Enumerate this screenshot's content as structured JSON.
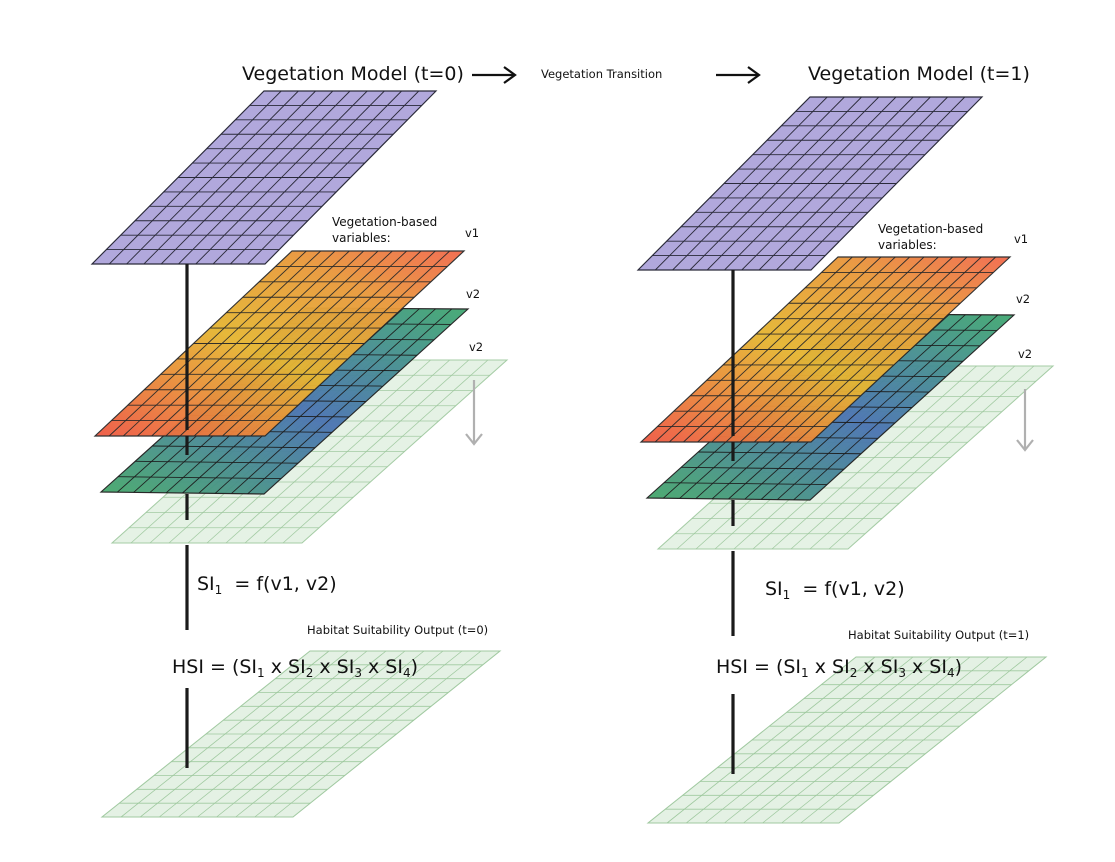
{
  "header": {
    "model_left": "Vegetation Model (t=0)",
    "transition": "Vegetation Transition",
    "model_right": "Vegetation Model (t=1)"
  },
  "panels": [
    {
      "id": "t0",
      "variables_label_line1": "Vegetation-based",
      "variables_label_line2": "variables:",
      "layer_labels": [
        "v1",
        "v2",
        "v2"
      ],
      "si_formula": {
        "si": "SI",
        "sub": "1",
        "rest": "= f(v1, v2)"
      },
      "output_label": "Habitat Suitability Output (t=0)",
      "hsi_formula": {
        "prefix": "HSI = (",
        "terms": [
          {
            "base": "SI",
            "sub": "1"
          },
          {
            "base": "SI",
            "sub": "2"
          },
          {
            "base": "SI",
            "sub": "3"
          },
          {
            "base": "SI",
            "sub": "4"
          }
        ],
        "separator": " x ",
        "suffix": ")"
      }
    },
    {
      "id": "t1",
      "variables_label_line1": "Vegetation-based",
      "variables_label_line2": "variables:",
      "layer_labels": [
        "v1",
        "v2",
        "v2"
      ],
      "si_formula": {
        "si": "SI",
        "sub": "1",
        "rest": "= f(v1, v2)"
      },
      "output_label": "Habitat Suitability Output (t=1)",
      "hsi_formula": {
        "prefix": "HSI = (",
        "terms": [
          {
            "base": "SI",
            "sub": "1"
          },
          {
            "base": "SI",
            "sub": "2"
          },
          {
            "base": "SI",
            "sub": "3"
          },
          {
            "base": "SI",
            "sub": "4"
          }
        ],
        "separator": " x ",
        "suffix": ")"
      }
    }
  ],
  "colors": {
    "vegetation_grid": "#b1a8dc",
    "orange_start": "#f0624a",
    "orange_mid": "#e8a33a",
    "orange_end": "#f26d50",
    "green_start": "#3e9e60",
    "green_end": "#4d6fb5",
    "pale_green": "#e3f1e3",
    "grid_line": "#222222",
    "arrow_gray": "#b0b0b0"
  }
}
